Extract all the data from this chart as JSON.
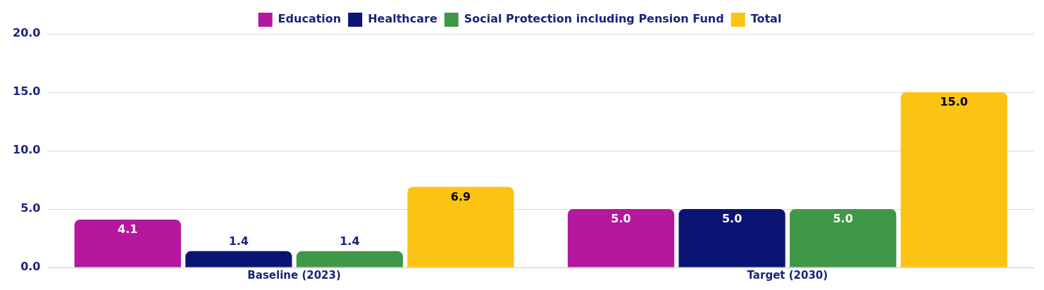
{
  "chart_data": {
    "type": "bar",
    "categories": [
      "Baseline (2023)",
      "Target (2030)"
    ],
    "series": [
      {
        "name": "Education",
        "color": "#b5179e",
        "values": [
          4.1,
          5.0
        ],
        "value_labels": [
          "4.1",
          "5.0"
        ]
      },
      {
        "name": "Healthcare",
        "color": "#0b1374",
        "values": [
          1.4,
          5.0
        ],
        "value_labels": [
          "1.4",
          "5.0"
        ]
      },
      {
        "name": "Social Protection including Pension Fund",
        "color": "#3f9847",
        "values": [
          1.4,
          5.0
        ],
        "value_labels": [
          "1.4",
          "5.0"
        ]
      },
      {
        "name": "Total",
        "color": "#fbc412",
        "values": [
          6.9,
          15.0
        ],
        "value_labels": [
          "6.9",
          "15.0"
        ]
      }
    ],
    "ylim": [
      0,
      20
    ],
    "yticks": [
      {
        "value": 0,
        "label": "0.0"
      },
      {
        "value": 5,
        "label": "5.0"
      },
      {
        "value": 10,
        "label": "10.0"
      },
      {
        "value": 15,
        "label": "15.0"
      },
      {
        "value": 20,
        "label": "20.0"
      }
    ],
    "grid": "y",
    "legend": "top"
  }
}
